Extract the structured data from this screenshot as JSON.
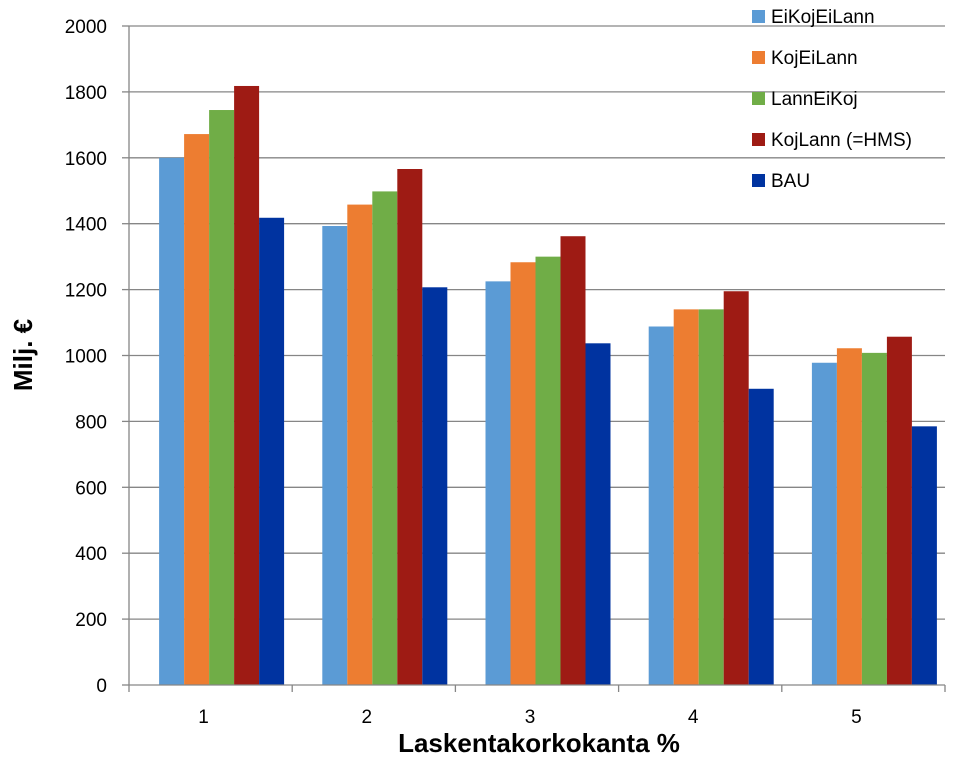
{
  "chart_data": {
    "type": "bar",
    "title": "",
    "xlabel": "Laskentakorkokanta %",
    "ylabel": "Milj. €",
    "categories": [
      "1",
      "2",
      "3",
      "4",
      "5"
    ],
    "ylim": [
      0,
      2000
    ],
    "yticks": [
      0,
      200,
      400,
      600,
      800,
      1000,
      1200,
      1400,
      1600,
      1800,
      2000
    ],
    "grid": true,
    "legend_position": "top-right",
    "series": [
      {
        "name": "EiKojEiLann",
        "color": "#5b9bd5",
        "values": [
          1600,
          1393,
          1225,
          1088,
          978
        ]
      },
      {
        "name": "KojEiLann",
        "color": "#ed7d31",
        "values": [
          1672,
          1458,
          1283,
          1140,
          1022
        ]
      },
      {
        "name": "LannEiKoj",
        "color": "#70ad47",
        "values": [
          1745,
          1498,
          1300,
          1140,
          1008
        ]
      },
      {
        "name": "KojLann (=HMS)",
        "color": "#9e1b14",
        "values": [
          1818,
          1566,
          1362,
          1195,
          1057
        ]
      },
      {
        "name": "BAU",
        "color": "#0033a0",
        "values": [
          1418,
          1207,
          1037,
          899,
          785
        ]
      }
    ]
  }
}
